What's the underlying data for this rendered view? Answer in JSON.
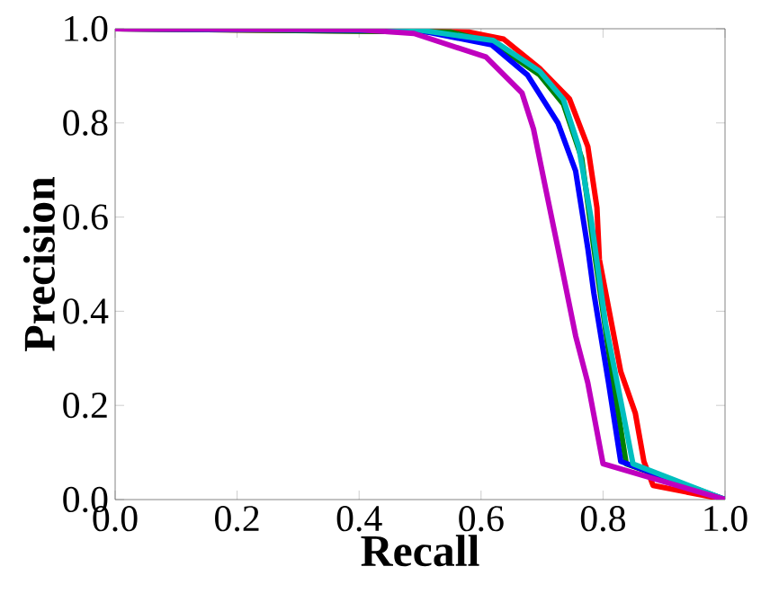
{
  "chart_data": {
    "type": "line",
    "xlabel": "Recall",
    "ylabel": "Precision",
    "xlim": [
      0,
      1
    ],
    "ylim": [
      0,
      1
    ],
    "xticks": [
      {
        "value": 0,
        "label": "0.0"
      },
      {
        "value": 0.2,
        "label": "0.2"
      },
      {
        "value": 0.4,
        "label": "0.4"
      },
      {
        "value": 0.6,
        "label": "0.6"
      },
      {
        "value": 0.8,
        "label": "0.8"
      },
      {
        "value": 1,
        "label": "1.0"
      }
    ],
    "yticks": [
      {
        "value": 0,
        "label": "0.0"
      },
      {
        "value": 0.2,
        "label": "0.2"
      },
      {
        "value": 0.4,
        "label": "0.4"
      },
      {
        "value": 0.6,
        "label": "0.6"
      },
      {
        "value": 0.8,
        "label": "0.8"
      },
      {
        "value": 1,
        "label": "1.0"
      }
    ],
    "series": [
      {
        "color": "#ff0000",
        "x": [
          0,
          0.58,
          0.637,
          0.696,
          0.745,
          0.775,
          0.79,
          0.794,
          0.829,
          0.853,
          0.867,
          0.882,
          1
        ],
        "values": [
          1,
          0.993,
          0.978,
          0.916,
          0.851,
          0.75,
          0.62,
          0.51,
          0.272,
          0.183,
          0.081,
          0.03,
          0
        ]
      },
      {
        "color": "#008000",
        "x": [
          0,
          0.55,
          0.62,
          0.696,
          0.735,
          0.765,
          0.785,
          0.814,
          0.838,
          1
        ],
        "values": [
          1,
          0.993,
          0.97,
          0.902,
          0.84,
          0.725,
          0.534,
          0.272,
          0.076,
          0
        ]
      },
      {
        "color": "#0000ff",
        "x": [
          0,
          0.5,
          0.617,
          0.676,
          0.726,
          0.755,
          0.775,
          0.785,
          0.809,
          0.829,
          1
        ],
        "values": [
          1,
          0.996,
          0.966,
          0.902,
          0.8,
          0.698,
          0.534,
          0.438,
          0.248,
          0.081,
          0
        ]
      },
      {
        "color": "#00bfbf",
        "x": [
          0,
          0.5,
          0.62,
          0.696,
          0.735,
          0.76,
          0.78,
          0.804,
          0.829,
          0.849,
          1
        ],
        "values": [
          1,
          0.997,
          0.975,
          0.91,
          0.85,
          0.75,
          0.6,
          0.374,
          0.21,
          0.076,
          0
        ]
      },
      {
        "color": "#bf00bf",
        "x": [
          0,
          0.4,
          0.49,
          0.608,
          0.667,
          0.686,
          0.706,
          0.726,
          0.755,
          0.775,
          0.8,
          1
        ],
        "values": [
          1,
          0.998,
          0.99,
          0.94,
          0.864,
          0.787,
          0.66,
          0.534,
          0.348,
          0.248,
          0.076,
          0
        ]
      }
    ]
  }
}
